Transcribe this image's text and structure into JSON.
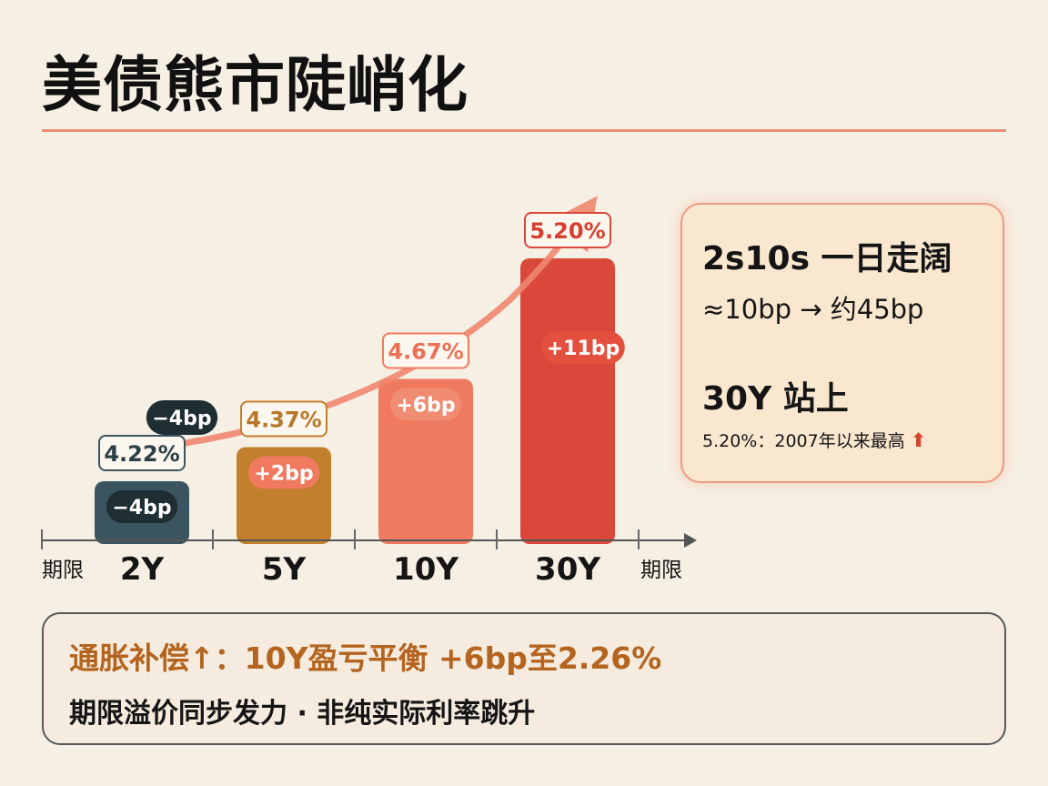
{
  "title": "美债熊市陡峭化",
  "chart_data": {
    "type": "bar",
    "categories": [
      "2Y",
      "5Y",
      "10Y",
      "30Y"
    ],
    "values": [
      4.22,
      4.37,
      4.67,
      5.2
    ],
    "value_labels": [
      "4.22%",
      "4.37%",
      "4.67%",
      "5.20%"
    ],
    "changes": [
      "−4bp",
      "+2bp",
      "+6bp",
      "+11bp"
    ],
    "extra_badge": "−4bp",
    "xlabel": "期限",
    "bar_colors": [
      "#3b5560",
      "#c27f2c",
      "#ef7a60",
      "#d9483a"
    ],
    "badge_colors": [
      "#1f2e33",
      "#ef7a60",
      "#ef8c72",
      "#e3503d"
    ],
    "label_border_colors": [
      "#3b5560",
      "#c27f2c",
      "#ef7a60",
      "#d9483a"
    ],
    "label_text_colors": [
      "#2b3f47",
      "#b8782a",
      "#ec6f56",
      "#d63f2f"
    ],
    "accent": "#f08770"
  },
  "info_card": {
    "line1": "2s10s 一日走阔",
    "line2": "≈10bp → 约45bp",
    "line3": "30Y 站上",
    "line4": "5.20%：2007年以来最高",
    "arrow": "⬆"
  },
  "bottom": {
    "line1": "通胀补偿↑：10Y盈亏平衡  +6bp至2.26%",
    "line2": "期限溢价同步发力 · 非纯实际利率跳升"
  }
}
